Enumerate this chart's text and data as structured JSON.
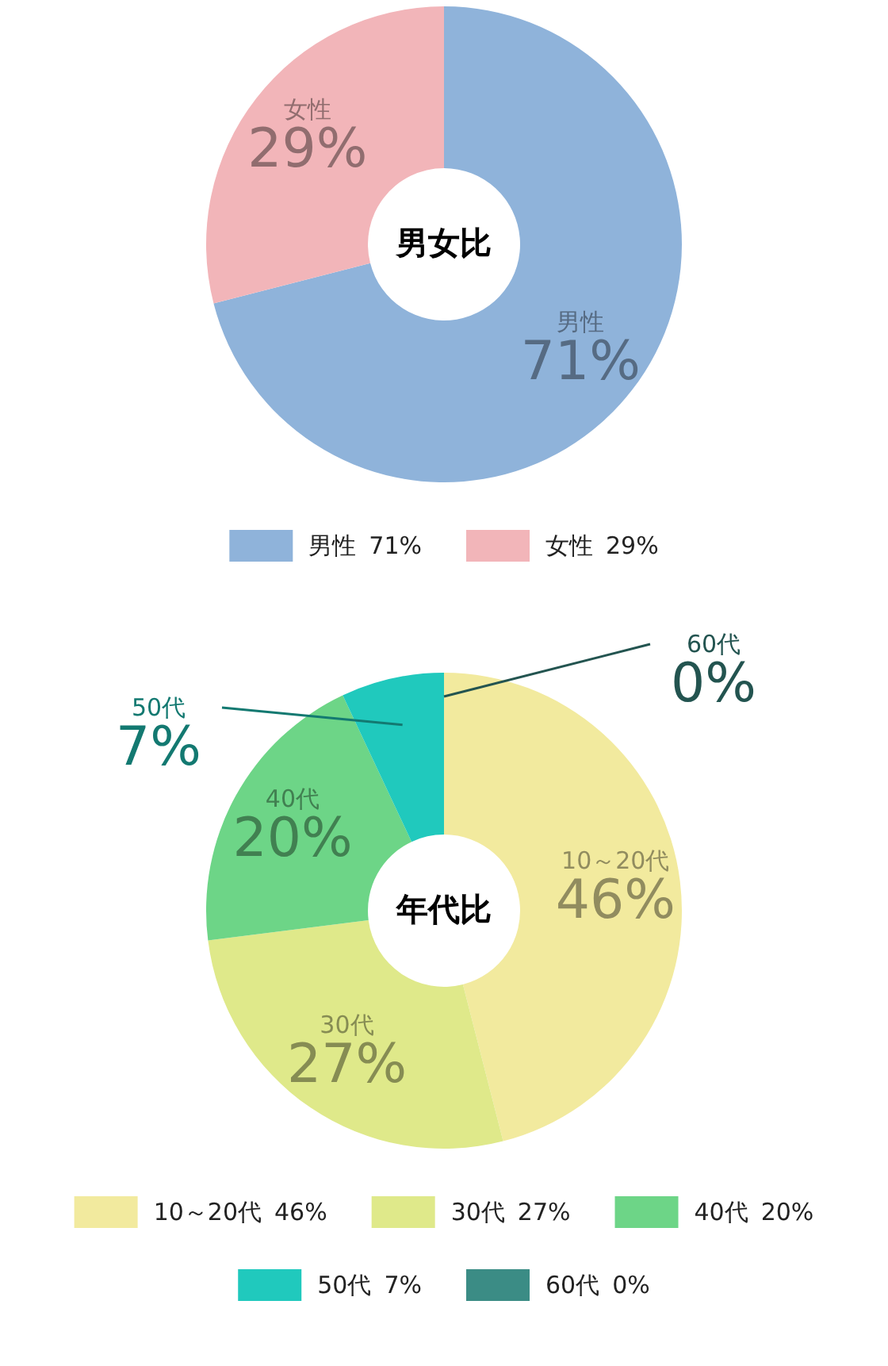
{
  "chart_data": [
    {
      "type": "donut",
      "title": "男女比",
      "categories": [
        "男性",
        "女性"
      ],
      "values": [
        71,
        29
      ],
      "colors": [
        "#8fb3da",
        "#f2b5b9"
      ],
      "value_labels": [
        "71%",
        "29%"
      ],
      "legend": "bottom"
    },
    {
      "type": "donut",
      "title": "年代比",
      "categories": [
        "10～20代",
        "30代",
        "40代",
        "50代",
        "60代"
      ],
      "values": [
        46,
        27,
        20,
        7,
        0
      ],
      "colors": [
        "#f2ea9e",
        "#dfe98a",
        "#6dd587",
        "#20c9bd",
        "#3b8c85"
      ],
      "value_labels": [
        "46%",
        "27%",
        "20%",
        "7%",
        "0%"
      ],
      "legend": "bottom"
    }
  ]
}
